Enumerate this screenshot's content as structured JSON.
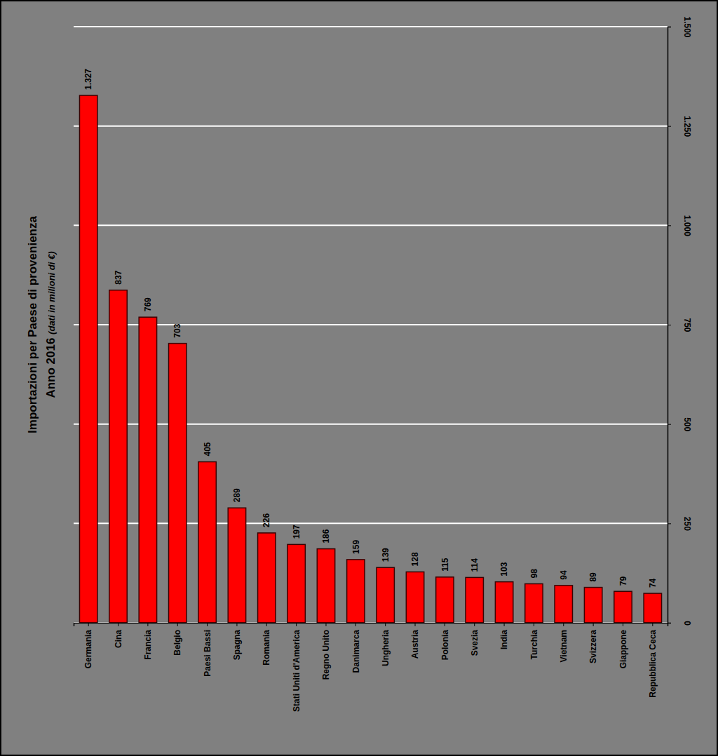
{
  "chart_data": {
    "type": "bar",
    "title": "Importazioni per Paese di provenienza",
    "subtitle": "Anno 2016",
    "annotations": [
      "(dati in milioni di €)"
    ],
    "categories": [
      "Germania",
      "Cina",
      "Francia",
      "Belgio",
      "Paesi Bassi",
      "Spagna",
      "Romania",
      "Stati Uniti d'America",
      "Regno Unito",
      "Danimarca",
      "Ungheria",
      "Austria",
      "Polonia",
      "Svezia",
      "India",
      "Turchia",
      "Vietnam",
      "Svizzera",
      "Giappone",
      "Repubblica Ceca"
    ],
    "values": [
      1327,
      837,
      769,
      703,
      405,
      289,
      226,
      197,
      186,
      159,
      139,
      128,
      115,
      114,
      103,
      98,
      94,
      89,
      79,
      74
    ],
    "value_labels": [
      "1.327",
      "837",
      "769",
      "703",
      "405",
      "289",
      "226",
      "197",
      "186",
      "159",
      "139",
      "128",
      "115",
      "114",
      "103",
      "98",
      "94",
      "89",
      "79",
      "74"
    ],
    "color": "#ff0000",
    "ylim": [
      0,
      1500
    ],
    "yticks": [
      0,
      250,
      500,
      750,
      {
        "value": 1000,
        "label": "1.000"
      },
      {
        "value": 1250,
        "label": "1.250"
      },
      {
        "value": 1500,
        "label": "1.500"
      }
    ],
    "grid": true,
    "data_labels": true
  }
}
